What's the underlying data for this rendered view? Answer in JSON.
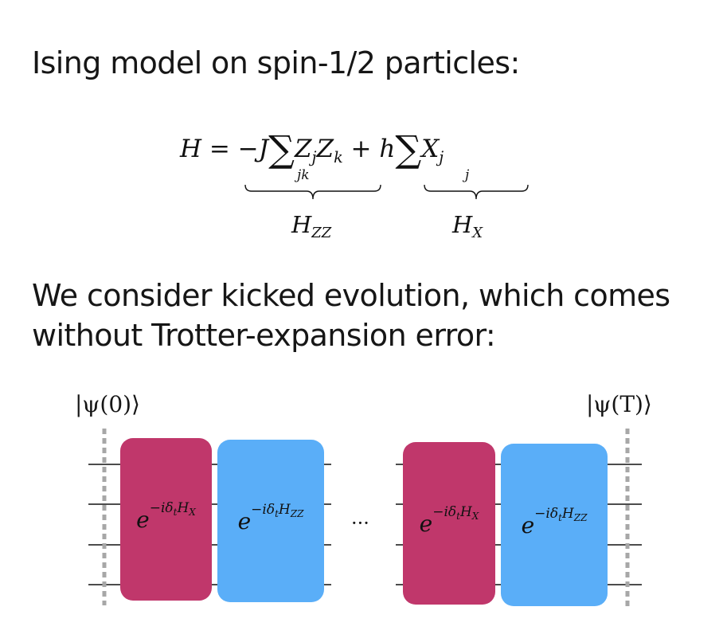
{
  "heading": "Ising model on spin-1/2 particles:",
  "paragraph": {
    "line1": "We consider kicked evolution, which comes",
    "line2": "without Trotter-expansion error:"
  },
  "equation": {
    "H": "H",
    "equals": " = −",
    "J": "J",
    "sum": "∑",
    "Z": "Z",
    "sub_j": "j",
    "sub_k": "k",
    "plus": " + ",
    "h": "h",
    "X": "X",
    "limit_jk": "jk",
    "limit_j": "j",
    "HZZ_base": "H",
    "HZZ_sub": "ZZ",
    "HX_base": "H",
    "HX_sub": "X"
  },
  "circuit": {
    "initial_state": "|ψ(0)⟩",
    "final_state": "|ψ(T)⟩",
    "gate_base": "e",
    "gate_exp_prefix": "−iδ",
    "gate_exp_t": "t",
    "gate_exp_H": "H",
    "gate_hx_sub": "X",
    "gate_hzz_sub": "ZZ",
    "ellipsis": "···",
    "colors": {
      "hx_gate": "#c0376b",
      "hzz_gate": "#5aaef8",
      "boundary": "#a7a7a7",
      "wire": "#111111"
    }
  }
}
